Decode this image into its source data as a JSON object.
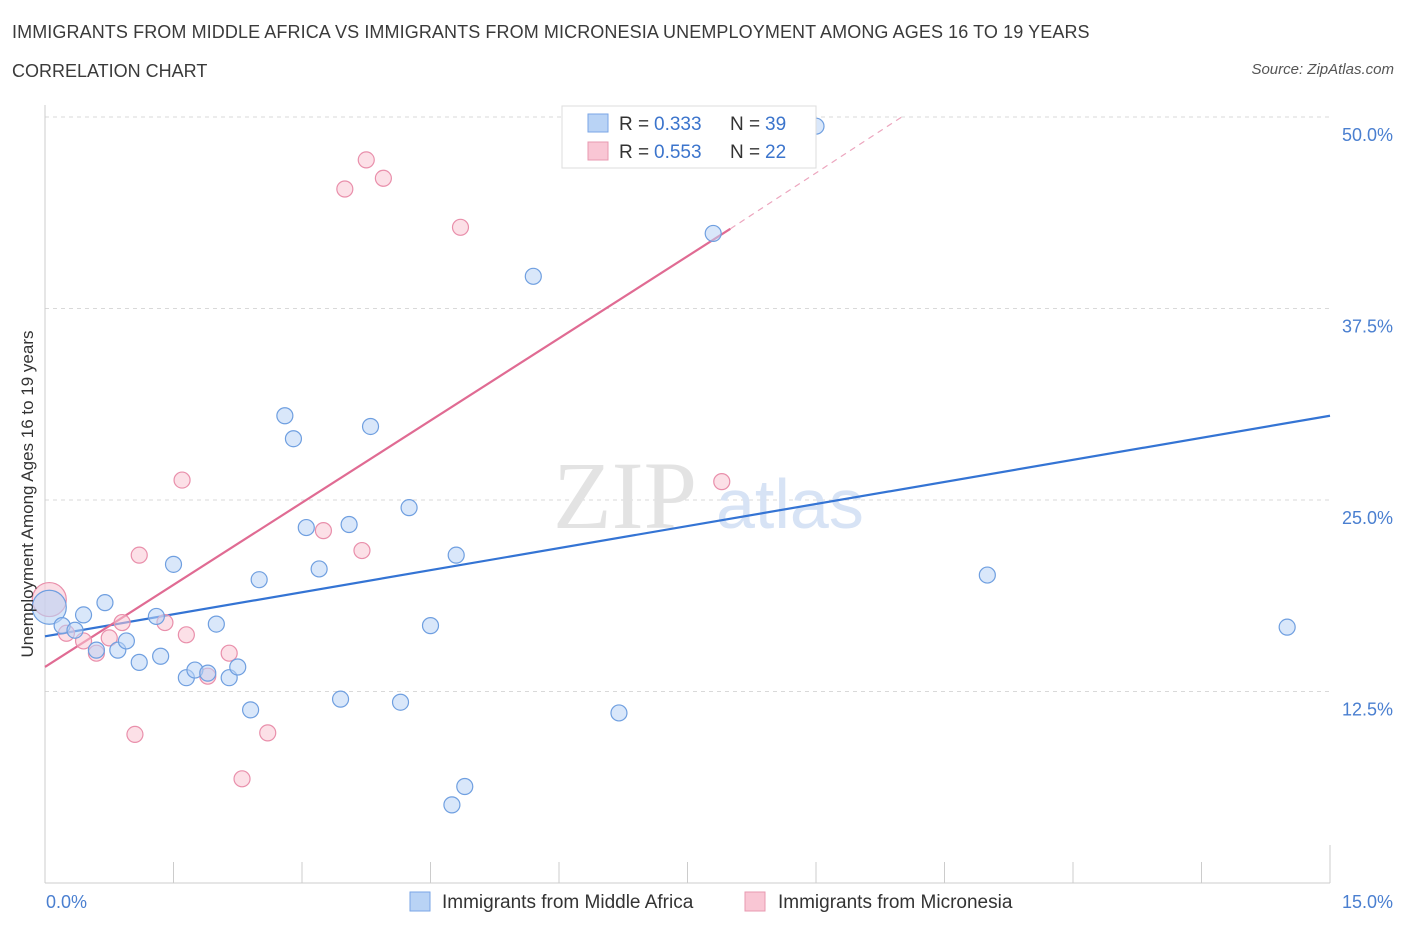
{
  "title": "IMMIGRANTS FROM MIDDLE AFRICA VS IMMIGRANTS FROM MICRONESIA UNEMPLOYMENT AMONG AGES 16 TO 19 YEARS",
  "subtitle": "CORRELATION CHART",
  "source": "Source: ZipAtlas.com",
  "watermark": {
    "zip": "ZIP",
    "atlas": "atlas"
  },
  "legend": {
    "r_label": "R =",
    "n_label": "N =",
    "entries": [
      {
        "r": "0.333",
        "n": "39",
        "color": "#b9d3f5",
        "stroke": "#7aa6e6"
      },
      {
        "r": "0.553",
        "n": "22",
        "color": "#f9c6d4",
        "stroke": "#e899b0"
      }
    ]
  },
  "chart_data": {
    "type": "scatter",
    "title": "IMMIGRANTS FROM MIDDLE AFRICA VS IMMIGRANTS FROM MICRONESIA UNEMPLOYMENT AMONG AGES 16 TO 19 YEARS",
    "xlabel": "",
    "ylabel": "Unemployment Among Ages 16 to 19 years",
    "xlim": [
      0,
      15
    ],
    "ylim": [
      0,
      50
    ],
    "x_tick_labels": [
      "0.0%",
      "15.0%"
    ],
    "y_ticks": [
      12.5,
      25.0,
      37.5,
      50.0
    ],
    "y_tick_labels": [
      "12.5%",
      "25.0%",
      "37.5%",
      "50.0%"
    ],
    "grid": true,
    "legend_position": "bottom",
    "series": [
      {
        "name": "Immigrants from Middle Africa",
        "color": "#b9d3f5",
        "stroke": "#6f9fe0",
        "line_color": "#3474d4",
        "trend": {
          "x": [
            0,
            15
          ],
          "y": [
            16.1,
            30.5
          ]
        },
        "points": [
          {
            "x": 0.05,
            "y": 18.0,
            "big": true
          },
          {
            "x": 0.2,
            "y": 16.8
          },
          {
            "x": 0.35,
            "y": 16.5
          },
          {
            "x": 0.45,
            "y": 17.5
          },
          {
            "x": 0.6,
            "y": 15.2
          },
          {
            "x": 0.7,
            "y": 18.3
          },
          {
            "x": 0.85,
            "y": 15.2
          },
          {
            "x": 0.95,
            "y": 15.8
          },
          {
            "x": 1.1,
            "y": 14.4
          },
          {
            "x": 1.3,
            "y": 17.4
          },
          {
            "x": 1.35,
            "y": 14.8
          },
          {
            "x": 1.5,
            "y": 20.8
          },
          {
            "x": 1.65,
            "y": 13.4
          },
          {
            "x": 1.75,
            "y": 13.9
          },
          {
            "x": 1.9,
            "y": 13.7
          },
          {
            "x": 2.0,
            "y": 16.9
          },
          {
            "x": 2.15,
            "y": 13.4
          },
          {
            "x": 2.25,
            "y": 14.1
          },
          {
            "x": 2.4,
            "y": 11.3
          },
          {
            "x": 2.5,
            "y": 19.8
          },
          {
            "x": 2.8,
            "y": 30.5
          },
          {
            "x": 2.9,
            "y": 29.0
          },
          {
            "x": 3.05,
            "y": 23.2
          },
          {
            "x": 3.2,
            "y": 20.5
          },
          {
            "x": 3.45,
            "y": 12.0
          },
          {
            "x": 3.55,
            "y": 23.4
          },
          {
            "x": 3.8,
            "y": 29.8
          },
          {
            "x": 4.15,
            "y": 11.8
          },
          {
            "x": 4.25,
            "y": 24.5
          },
          {
            "x": 4.5,
            "y": 16.8
          },
          {
            "x": 4.75,
            "y": 5.1
          },
          {
            "x": 4.8,
            "y": 21.4
          },
          {
            "x": 4.9,
            "y": 6.3
          },
          {
            "x": 5.7,
            "y": 39.6
          },
          {
            "x": 6.7,
            "y": 11.1
          },
          {
            "x": 7.8,
            "y": 42.4
          },
          {
            "x": 9.0,
            "y": 49.4
          },
          {
            "x": 11.0,
            "y": 20.1
          },
          {
            "x": 14.5,
            "y": 16.7
          }
        ]
      },
      {
        "name": "Immigrants from Micronesia",
        "color": "#f9c6d4",
        "stroke": "#e98fab",
        "line_color": "#e06b93",
        "trend": {
          "x": [
            0,
            8.0
          ],
          "y": [
            14.1,
            42.7
          ]
        },
        "trend_dashed": {
          "x": [
            8.0,
            10.0
          ],
          "y": [
            42.7,
            50.0
          ]
        },
        "points": [
          {
            "x": 0.05,
            "y": 18.5,
            "big": true
          },
          {
            "x": 0.25,
            "y": 16.3
          },
          {
            "x": 0.45,
            "y": 15.8
          },
          {
            "x": 0.6,
            "y": 15.0
          },
          {
            "x": 0.75,
            "y": 16.0
          },
          {
            "x": 0.9,
            "y": 17.0
          },
          {
            "x": 1.05,
            "y": 9.7
          },
          {
            "x": 1.1,
            "y": 21.4
          },
          {
            "x": 1.4,
            "y": 17.0
          },
          {
            "x": 1.6,
            "y": 26.3
          },
          {
            "x": 1.65,
            "y": 16.2
          },
          {
            "x": 1.9,
            "y": 13.5
          },
          {
            "x": 2.15,
            "y": 15.0
          },
          {
            "x": 2.3,
            "y": 6.8
          },
          {
            "x": 2.6,
            "y": 9.8
          },
          {
            "x": 3.25,
            "y": 23.0
          },
          {
            "x": 3.5,
            "y": 45.3
          },
          {
            "x": 3.7,
            "y": 21.7
          },
          {
            "x": 3.75,
            "y": 47.2
          },
          {
            "x": 3.95,
            "y": 46.0
          },
          {
            "x": 4.85,
            "y": 42.8
          },
          {
            "x": 7.9,
            "y": 26.2
          }
        ]
      }
    ]
  }
}
